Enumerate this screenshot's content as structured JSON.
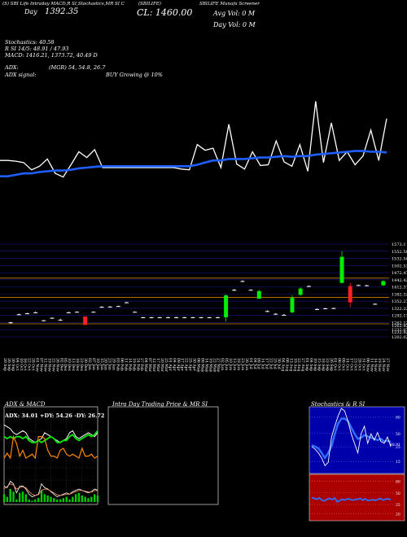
{
  "header": {
    "title_left": "(S) SBI Life Intraday MACD,R SI,Stochastics,MR SI Charts",
    "title_code": "(SBILIFE)",
    "title_right": "SBILIFE Munafa Screener",
    "day_label": "Day",
    "day_value": "1392.35",
    "ltp": "CL: 1460.00",
    "avg_vol": "Avg Vol: 0  M",
    "day_vol": "Day Vol: 0  M",
    "stoch_line": "Stochastics: 40.58",
    "rsi_line": "R                          SI 14/5: 48.91 / 47.93",
    "macd_line": "MACD: 1416.21, 1373.72, 40.49 D",
    "adx_line1_label": "ADX:",
    "adx_line1_value": "(MGR) 54,  54.8,  26.7",
    "adx_line2_label": "ADX  signal:",
    "adx_line2_value": "BUY Growing @ 10%"
  },
  "colors": {
    "price_line": "#ffffff",
    "ma_line": "#1f5fff",
    "bull": "#00ee00",
    "bear": "#ff2020",
    "level_line": "#c87a00",
    "gridline": "#1a1a8a",
    "rsi_band_bg": "#0000aa",
    "mrsi_band_bg": "#aa0000"
  },
  "chart_data": [
    {
      "type": "line",
      "panel": "overview",
      "series": [
        {
          "name": "price",
          "values": [
            1398,
            1398,
            1397,
            1395,
            1385,
            1390,
            1400,
            1380,
            1375,
            1392,
            1410,
            1402,
            1413,
            1388,
            1388,
            1388,
            1388,
            1388,
            1388,
            1388,
            1388,
            1388,
            1388,
            1386,
            1385,
            1420,
            1412,
            1415,
            1388,
            1448,
            1393,
            1386,
            1410,
            1391,
            1392,
            1425,
            1396,
            1390,
            1420,
            1383,
            1480,
            1395,
            1450,
            1398,
            1410,
            1392,
            1404,
            1440,
            1398,
            1456
          ]
        },
        {
          "name": "average",
          "values": [
            1376,
            1376,
            1378,
            1380,
            1380,
            1382,
            1383,
            1384,
            1384,
            1385,
            1387,
            1388,
            1389,
            1390,
            1390,
            1390,
            1390,
            1390,
            1390,
            1390,
            1390,
            1390,
            1390,
            1390,
            1390,
            1392,
            1395,
            1398,
            1398,
            1400,
            1400,
            1400,
            1401,
            1402,
            1402,
            1403,
            1404,
            1403,
            1404,
            1404,
            1406,
            1407,
            1408,
            1409,
            1410,
            1411,
            1411,
            1410,
            1410,
            1409
          ]
        }
      ]
    },
    {
      "type": "candlestick",
      "panel": "price",
      "price_scale": [
        "1573.1",
        "1552.58",
        "1532.58",
        "1502.53",
        "1472.47",
        "1442.42",
        "1412.37",
        "1382.32",
        "1352.27",
        "1322.22",
        "1292.17",
        "1262.12",
        "1232.07",
        "1202.02"
      ],
      "y_labels_shown": [
        "1573.1",
        "1552.58",
        "1532.58",
        "1502.53",
        "1472.47",
        "1442.42",
        "1412.37",
        "1382.32",
        "1352.27",
        "1322.22",
        "1292.17",
        "1262.12",
        "1232.07",
        "1202.02",
        "1262.92",
        "1232.92"
      ],
      "x_labels": [
        "20 Sep",
        "26 Sep",
        "30 Sep",
        "04 Oct",
        "10 Oct",
        "16 Oct",
        "22 Oct",
        "28 Oct",
        "01 Nov",
        "07 Nov",
        "12 Nov",
        "19 Nov",
        "22 Nov",
        "26 Nov",
        "02 Dec",
        "05 Dec",
        "10 Dec",
        "13 Dec",
        "18 Dec",
        "23 Dec",
        "30 Dec",
        "03 Jan",
        "07 Jan",
        "10 Jan",
        "15 Jan",
        "20 Jan",
        "23 Jan",
        "29 Jan",
        "03 Feb",
        "06 Feb",
        "11 Feb",
        "14 Feb",
        "19 Feb",
        "24 Feb",
        "27 Feb",
        "04 Mar",
        "07 Mar",
        "12 Mar",
        "17 Mar",
        "20 Mar",
        "25 Mar",
        "01 Apr",
        "04 Apr",
        "09 Apr",
        "17 Apr",
        "22 Apr",
        "25 Apr",
        "30 Apr",
        "06 May",
        "09 May",
        "14 May",
        "19 May",
        "22 May",
        "27 May",
        "02 Jun",
        "05 Jun",
        "10 Jun",
        "13 Jun",
        "18 Jun",
        "23 Jun",
        "26 Jun",
        "01 Jul",
        "04 Jul",
        "09 Jul",
        "14 Jul",
        "17 Jul",
        "22 Jul",
        "25 Jul",
        "30 Jul",
        "04 Aug",
        "08 Aug",
        "13 Aug",
        "19 Aug",
        "22 Aug",
        "27 Aug",
        "01 Sep",
        "04 Sep",
        "10 Sep",
        "15 Sep",
        "18 Sep",
        "23 Sep",
        "26 Sep",
        "01 Oct",
        "06 Oct",
        "09 Oct",
        "14 Oct",
        "17 Oct",
        "23 Oct",
        "28 Oct",
        "31 Oct",
        "06 Nov",
        "11 Nov",
        "14 Nov",
        "19 Nov",
        "24 Nov",
        "27 Nov"
      ],
      "candles": [
        {
          "o": 1260,
          "c": 1260,
          "h": 1262,
          "l": 1255
        },
        {
          "o": 1292,
          "c": 1292,
          "h": 1295,
          "l": 1290
        },
        {
          "o": 1296,
          "c": 1296,
          "h": 1298,
          "l": 1293
        },
        {
          "o": 1300,
          "c": 1300,
          "h": 1303,
          "l": 1298
        },
        {
          "o": 1268,
          "c": 1268,
          "h": 1270,
          "l": 1265
        },
        {
          "o": 1278,
          "c": 1278,
          "h": 1280,
          "l": 1276
        },
        {
          "o": 1270,
          "c": 1270,
          "h": 1275,
          "l": 1268
        },
        {
          "o": 1300,
          "c": 1300,
          "h": 1303,
          "l": 1298
        },
        {
          "o": 1302,
          "c": 1302,
          "h": 1304,
          "l": 1300
        },
        {
          "o": 1283,
          "c": 1250,
          "h": 1285,
          "l": 1248
        },
        {
          "o": 1302,
          "c": 1302,
          "h": 1304,
          "l": 1300
        },
        {
          "o": 1322,
          "c": 1322,
          "h": 1325,
          "l": 1320
        },
        {
          "o": 1323,
          "c": 1323,
          "h": 1325,
          "l": 1321
        },
        {
          "o": 1325,
          "c": 1325,
          "h": 1327,
          "l": 1323
        },
        {
          "o": 1340,
          "c": 1340,
          "h": 1342,
          "l": 1338
        },
        {
          "o": 1302,
          "c": 1302,
          "h": 1304,
          "l": 1300
        },
        {
          "o": 1280,
          "c": 1280,
          "h": 1282,
          "l": 1278
        },
        {
          "o": 1280,
          "c": 1280,
          "h": 1282,
          "l": 1278
        },
        {
          "o": 1280,
          "c": 1280,
          "h": 1282,
          "l": 1278
        },
        {
          "o": 1280,
          "c": 1280,
          "h": 1282,
          "l": 1278
        },
        {
          "o": 1280,
          "c": 1280,
          "h": 1282,
          "l": 1278
        },
        {
          "o": 1280,
          "c": 1280,
          "h": 1282,
          "l": 1278
        },
        {
          "o": 1280,
          "c": 1280,
          "h": 1282,
          "l": 1278
        },
        {
          "o": 1280,
          "c": 1280,
          "h": 1282,
          "l": 1278
        },
        {
          "o": 1280,
          "c": 1280,
          "h": 1282,
          "l": 1278
        },
        {
          "o": 1280,
          "c": 1280,
          "h": 1282,
          "l": 1278
        },
        {
          "o": 1280,
          "c": 1368,
          "h": 1372,
          "l": 1263
        },
        {
          "o": 1390,
          "c": 1390,
          "h": 1394,
          "l": 1386
        },
        {
          "o": 1425,
          "c": 1425,
          "h": 1428,
          "l": 1422
        },
        {
          "o": 1390,
          "c": 1390,
          "h": 1392,
          "l": 1388
        },
        {
          "o": 1355,
          "c": 1385,
          "h": 1390,
          "l": 1353
        },
        {
          "o": 1305,
          "c": 1305,
          "h": 1308,
          "l": 1302
        },
        {
          "o": 1294,
          "c": 1294,
          "h": 1297,
          "l": 1292
        },
        {
          "o": 1290,
          "c": 1290,
          "h": 1293,
          "l": 1288
        },
        {
          "o": 1300,
          "c": 1358,
          "h": 1368,
          "l": 1296
        },
        {
          "o": 1370,
          "c": 1395,
          "h": 1400,
          "l": 1366
        },
        {
          "o": 1405,
          "c": 1405,
          "h": 1408,
          "l": 1402
        },
        {
          "o": 1313,
          "c": 1313,
          "h": 1316,
          "l": 1311
        },
        {
          "o": 1316,
          "c": 1316,
          "h": 1318,
          "l": 1314
        },
        {
          "o": 1317,
          "c": 1317,
          "h": 1319,
          "l": 1315
        },
        {
          "o": 1418,
          "c": 1522,
          "h": 1545,
          "l": 1416
        },
        {
          "o": 1405,
          "c": 1340,
          "h": 1418,
          "l": 1320
        },
        {
          "o": 1409,
          "c": 1409,
          "h": 1411,
          "l": 1407
        },
        {
          "o": 1408,
          "c": 1408,
          "h": 1410,
          "l": 1406
        },
        {
          "o": 1334,
          "c": 1334,
          "h": 1336,
          "l": 1332
        },
        {
          "o": 1408,
          "c": 1425,
          "h": 1428,
          "l": 1406
        }
      ],
      "levels": [
        1437,
        1360,
        1254
      ]
    },
    {
      "type": "line",
      "panel": "adx_macd",
      "title": "ADX  & MACD",
      "label": "ADX: 34.01 +DY: 54.26 -DY: 26.72",
      "grid": true,
      "series": [
        {
          "name": "ADX",
          "values": [
            74,
            72,
            70,
            66,
            64,
            66,
            68,
            66,
            60,
            58,
            56,
            58,
            60,
            66,
            64,
            62,
            60,
            58,
            56,
            58,
            60,
            66,
            68,
            62,
            60,
            62,
            64,
            66,
            64,
            62,
            66
          ]
        },
        {
          "name": "+DY",
          "values": [
            62,
            60,
            62,
            60,
            62,
            62,
            60,
            62,
            58,
            56,
            56,
            58,
            56,
            58,
            60,
            62,
            60,
            56,
            56,
            58,
            58,
            62,
            64,
            60,
            58,
            60,
            62,
            64,
            62,
            64,
            68
          ]
        },
        {
          "name": "-DY",
          "values": [
            40,
            45,
            40,
            62,
            55,
            42,
            48,
            40,
            42,
            44,
            40,
            62,
            62,
            60,
            48,
            42,
            42,
            40,
            48,
            50,
            44,
            42,
            44,
            42,
            40,
            50,
            42,
            42,
            44,
            40,
            42
          ]
        },
        {
          "name": "macd_main",
          "values": [
            0.6,
            0.55,
            0.8,
            0.7,
            0.35,
            0.6,
            0.62,
            0.5,
            0.3,
            0.2,
            0.25,
            0.3,
            0.7,
            0.55,
            0.5,
            0.4,
            0.3,
            0.2,
            0.25,
            0.3,
            0.35,
            0.3,
            0.4,
            0.45,
            0.5,
            0.45,
            0.4,
            0.35,
            0.4,
            0.5,
            0.45
          ]
        },
        {
          "name": "macd_signal",
          "values": [
            0.5,
            0.6,
            0.7,
            0.65,
            0.5,
            0.55,
            0.58,
            0.55,
            0.4,
            0.3,
            0.25,
            0.28,
            0.45,
            0.5,
            0.48,
            0.42,
            0.35,
            0.28,
            0.25,
            0.27,
            0.3,
            0.3,
            0.35,
            0.4,
            0.45,
            0.44,
            0.42,
            0.38,
            0.38,
            0.44,
            0.44
          ]
        },
        {
          "name": "macd_hist",
          "values": [
            0.3,
            0.2,
            0.5,
            0.4,
            0.1,
            0.35,
            0.4,
            0.3,
            0.1,
            0.05,
            0.1,
            0.15,
            0.45,
            0.3,
            0.25,
            0.2,
            0.15,
            0.1,
            0.1,
            0.15,
            0.2,
            0.1,
            0.2,
            0.3,
            0.35,
            0.25,
            0.2,
            0.15,
            0.2,
            0.3,
            0.25
          ]
        }
      ]
    },
    {
      "type": "line",
      "panel": "intraday",
      "title": "Intra Day Trading Price  & MR                          SI",
      "series": []
    },
    {
      "type": "line",
      "panel": "stoch_rsi",
      "title": "Stochastics & R                          SI",
      "y_ticks_rsi": [
        "80",
        "50",
        "25",
        "15"
      ],
      "y_ticks_mrsi": [
        "80",
        "50",
        "25",
        "20"
      ],
      "last_label": "48.91",
      "series": [
        {
          "name": "Stochastics",
          "values": [
            40,
            36,
            30,
            22,
            10,
            15,
            55,
            72,
            88,
            100,
            96,
            80,
            60,
            45,
            30,
            60,
            72,
            45,
            60,
            50,
            62,
            48,
            45,
            55,
            40
          ]
        },
        {
          "name": "RSI",
          "values": [
            42,
            40,
            37,
            30,
            22,
            30,
            40,
            60,
            76,
            84,
            84,
            80,
            70,
            60,
            52,
            54,
            58,
            56,
            54,
            52,
            50,
            52,
            48,
            49,
            47
          ]
        },
        {
          "name": "MRSI",
          "values": [
            50,
            48,
            46,
            49,
            44,
            42,
            46,
            48,
            45,
            49,
            40,
            43,
            46,
            44,
            47,
            46,
            44,
            45,
            46,
            48,
            44,
            47,
            43,
            44,
            45,
            43,
            46,
            48,
            44,
            46,
            47,
            45
          ]
        }
      ]
    }
  ]
}
